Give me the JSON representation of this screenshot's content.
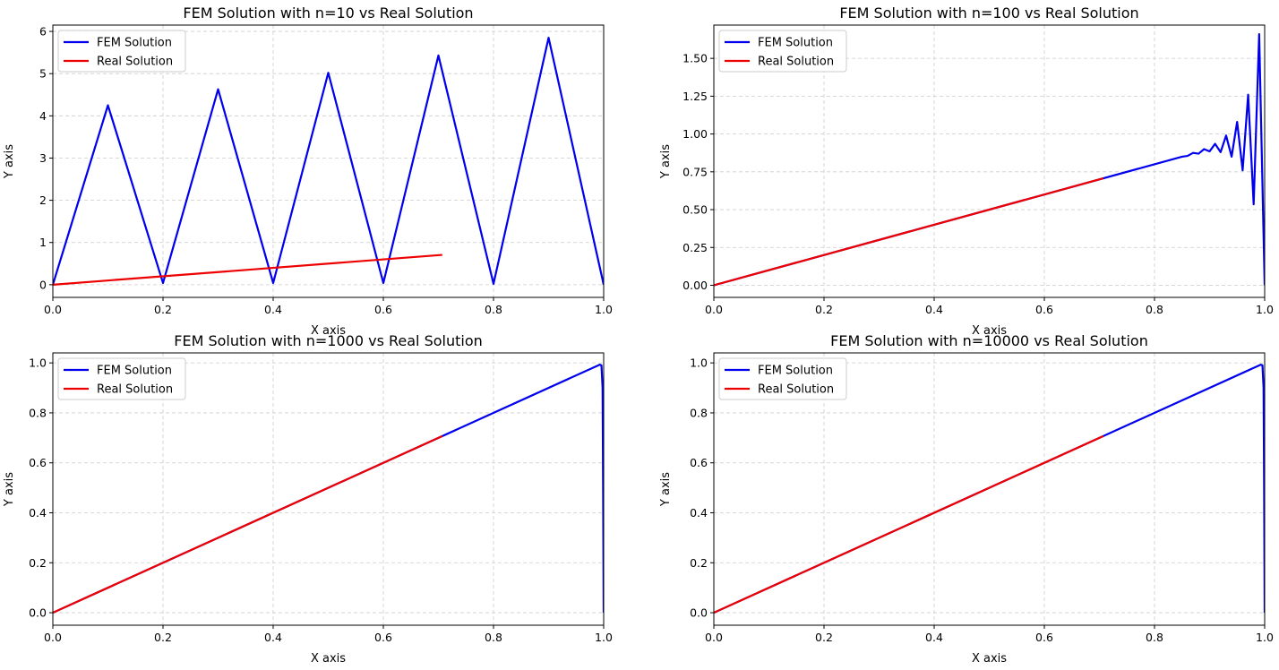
{
  "colors": {
    "fem": "#0000ee",
    "real": "#ee0000",
    "grid": "#cccccc"
  },
  "chart_data": [
    {
      "type": "line",
      "title": "FEM Solution with n=10 vs Real Solution",
      "xlabel": "X axis",
      "ylabel": "Y axis",
      "xlim": [
        0,
        1
      ],
      "ylim": [
        -0.3,
        6.15
      ],
      "xticks": [
        0,
        0.2,
        0.4,
        0.6,
        0.8,
        1.0
      ],
      "xtick_labels": [
        "0.0",
        "0.2",
        "0.4",
        "0.6",
        "0.8",
        "1.0"
      ],
      "yticks": [
        0,
        1,
        2,
        3,
        4,
        5,
        6
      ],
      "ytick_labels": [
        "0",
        "1",
        "2",
        "3",
        "4",
        "5",
        "6"
      ],
      "grid": true,
      "legend": "top-left",
      "series": [
        {
          "name": "FEM Solution",
          "color": "#0000ee",
          "x": [
            0,
            0.1,
            0.2,
            0.3,
            0.4,
            0.5,
            0.6,
            0.7,
            0.8,
            0.9,
            1.0
          ],
          "y": [
            0,
            4.25,
            0.04,
            4.63,
            0.04,
            5.02,
            0.04,
            5.43,
            0.02,
            5.85,
            0
          ]
        },
        {
          "name": "Real Solution",
          "color": "#ee0000",
          "x": [
            0,
            0.707
          ],
          "y": [
            0,
            0.707
          ]
        }
      ]
    },
    {
      "type": "line",
      "title": "FEM Solution with n=100 vs Real Solution",
      "xlabel": "X axis",
      "ylabel": "Y axis",
      "xlim": [
        0,
        1
      ],
      "ylim": [
        -0.08,
        1.72
      ],
      "xticks": [
        0,
        0.2,
        0.4,
        0.6,
        0.8,
        1.0
      ],
      "xtick_labels": [
        "0.0",
        "0.2",
        "0.4",
        "0.6",
        "0.8",
        "1.0"
      ],
      "yticks": [
        0,
        0.25,
        0.5,
        0.75,
        1.0,
        1.25,
        1.5
      ],
      "ytick_labels": [
        "0.00",
        "0.25",
        "0.50",
        "0.75",
        "1.00",
        "1.25",
        "1.50"
      ],
      "grid": true,
      "legend": "top-left",
      "series": [
        {
          "name": "FEM Solution",
          "color": "#0000ee",
          "x": [
            0,
            0.85,
            0.86,
            0.87,
            0.88,
            0.89,
            0.9,
            0.91,
            0.92,
            0.93,
            0.94,
            0.95,
            0.96,
            0.97,
            0.98,
            0.99,
            1.0
          ],
          "y": [
            0,
            0.85,
            0.855,
            0.875,
            0.87,
            0.9,
            0.885,
            0.935,
            0.88,
            0.99,
            0.85,
            1.08,
            0.76,
            1.26,
            0.535,
            1.66,
            0
          ]
        },
        {
          "name": "Real Solution",
          "color": "#ee0000",
          "x": [
            0,
            0.707
          ],
          "y": [
            0,
            0.707
          ]
        }
      ]
    },
    {
      "type": "line",
      "title": "FEM Solution with n=1000 vs Real Solution",
      "xlabel": "X axis",
      "ylabel": "Y axis",
      "xlim": [
        0,
        1
      ],
      "ylim": [
        -0.05,
        1.04
      ],
      "xticks": [
        0,
        0.2,
        0.4,
        0.6,
        0.8,
        1.0
      ],
      "xtick_labels": [
        "0.0",
        "0.2",
        "0.4",
        "0.6",
        "0.8",
        "1.0"
      ],
      "yticks": [
        0,
        0.2,
        0.4,
        0.6,
        0.8,
        1.0
      ],
      "ytick_labels": [
        "0.0",
        "0.2",
        "0.4",
        "0.6",
        "0.8",
        "1.0"
      ],
      "grid": true,
      "legend": "top-left",
      "series": [
        {
          "name": "FEM Solution",
          "color": "#0000ee",
          "x": [
            0,
            0.993,
            0.996,
            0.998,
            0.999,
            1.0
          ],
          "y": [
            0,
            0.993,
            0.99,
            0.9,
            0.5,
            0
          ]
        },
        {
          "name": "Real Solution",
          "color": "#ee0000",
          "x": [
            0,
            0.707
          ],
          "y": [
            0,
            0.707
          ]
        }
      ]
    },
    {
      "type": "line",
      "title": "FEM Solution with n=10000 vs Real Solution",
      "xlabel": "X axis",
      "ylabel": "Y axis",
      "xlim": [
        0,
        1
      ],
      "ylim": [
        -0.05,
        1.04
      ],
      "xticks": [
        0,
        0.2,
        0.4,
        0.6,
        0.8,
        1.0
      ],
      "xtick_labels": [
        "0.0",
        "0.2",
        "0.4",
        "0.6",
        "0.8",
        "1.0"
      ],
      "yticks": [
        0,
        0.2,
        0.4,
        0.6,
        0.8,
        1.0
      ],
      "ytick_labels": [
        "0.0",
        "0.2",
        "0.4",
        "0.6",
        "0.8",
        "1.0"
      ],
      "grid": true,
      "legend": "top-left",
      "series": [
        {
          "name": "FEM Solution",
          "color": "#0000ee",
          "x": [
            0,
            0.993,
            0.996,
            0.998,
            0.999,
            1.0
          ],
          "y": [
            0,
            0.993,
            0.99,
            0.9,
            0.5,
            0
          ]
        },
        {
          "name": "Real Solution",
          "color": "#ee0000",
          "x": [
            0,
            0.707
          ],
          "y": [
            0,
            0.707
          ]
        }
      ]
    }
  ]
}
